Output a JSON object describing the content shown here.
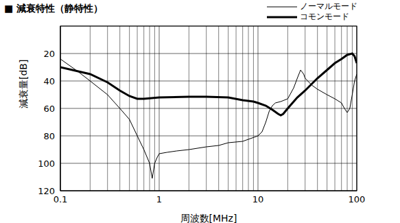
{
  "chart_data": {
    "type": "line",
    "title": "■ 減衰特性（静特性）",
    "x_label": "周波数[MHz]",
    "y_label": "減衰量[dB]",
    "log": "x",
    "grid": true,
    "legend": "top-right",
    "xlim": [
      0.1,
      100
    ],
    "xticks": [
      0.1,
      1,
      10,
      100
    ],
    "ylim": [
      0,
      120
    ],
    "yticks": [
      20,
      40,
      60,
      80,
      100,
      120
    ],
    "series": [
      {
        "name": "ノーマルモード",
        "color": "#000000",
        "line_style": "thin",
        "x": [
          0.1,
          0.15,
          0.2,
          0.3,
          0.4,
          0.5,
          0.6,
          0.7,
          0.8,
          0.85,
          0.9,
          0.95,
          1,
          1.2,
          1.5,
          2,
          3,
          4,
          5,
          7,
          10,
          11,
          12,
          13,
          14,
          15,
          17,
          20,
          23,
          25,
          27,
          29,
          30,
          35,
          40,
          50,
          60,
          70,
          75,
          80,
          85,
          90,
          95,
          100
        ],
        "values": [
          24,
          33,
          40,
          50,
          60,
          68,
          80,
          90,
          100,
          111,
          100,
          96,
          93,
          92,
          91,
          90,
          88,
          87,
          85,
          84,
          80,
          77,
          70,
          62,
          58,
          56,
          55,
          53,
          45,
          38,
          32,
          35,
          38,
          43,
          46,
          50,
          53,
          56,
          60,
          63,
          60,
          50,
          40,
          35
        ]
      },
      {
        "name": "コモンモード",
        "color": "#000000",
        "line_style": "thick",
        "x": [
          0.1,
          0.2,
          0.3,
          0.4,
          0.5,
          0.6,
          0.7,
          1,
          2,
          3,
          5,
          7,
          9,
          10,
          12,
          14,
          16,
          17,
          18,
          20,
          25,
          30,
          40,
          50,
          60,
          70,
          80,
          90,
          95,
          100
        ],
        "values": [
          30,
          35,
          41,
          47,
          51,
          53,
          53,
          52,
          51.5,
          51.5,
          52,
          54,
          55,
          56,
          58,
          61,
          64,
          65,
          64,
          60,
          52,
          47,
          38,
          32,
          27,
          24,
          21,
          20,
          22,
          27
        ]
      }
    ]
  }
}
